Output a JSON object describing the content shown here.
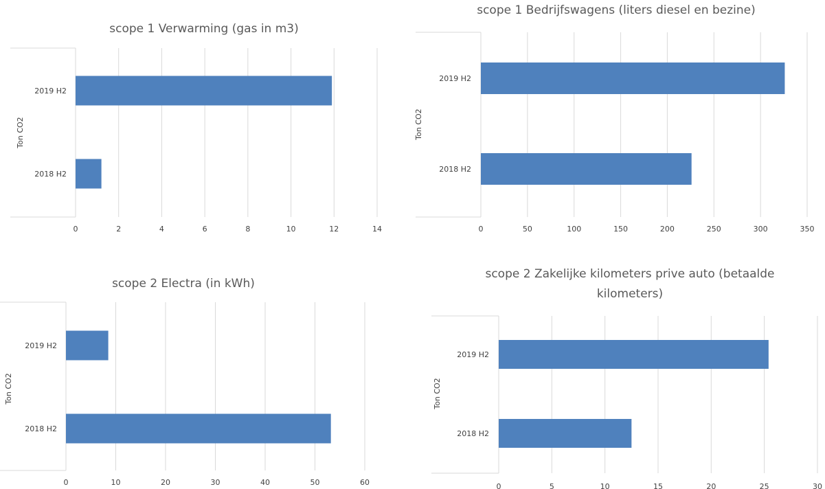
{
  "chart_data": [
    {
      "type": "bar",
      "orientation": "horizontal",
      "title": "scope 1 Verwarming (gas in m3)",
      "ylabel": "Ton CO2",
      "xlabel": "",
      "categories": [
        "2019 H2",
        "2018 H2"
      ],
      "values": [
        11.9,
        1.2
      ],
      "xlim": [
        0,
        14
      ],
      "ticks": [
        "0",
        "2",
        "4",
        "6",
        "8",
        "10",
        "12",
        "14"
      ],
      "bar_color": "#4f81bd",
      "grid": true
    },
    {
      "type": "bar",
      "orientation": "horizontal",
      "title": "scope 1 Bedrijfswagens (liters diesel en bezine)",
      "ylabel": "Ton CO2",
      "xlabel": "",
      "categories": [
        "2019 H2",
        "2018 H2"
      ],
      "values": [
        326,
        226
      ],
      "xlim": [
        0,
        350
      ],
      "ticks": [
        "0",
        "50",
        "100",
        "150",
        "200",
        "250",
        "300",
        "350"
      ],
      "bar_color": "#4f81bd",
      "grid": true
    },
    {
      "type": "bar",
      "orientation": "horizontal",
      "title": "scope 2 Electra (in kWh)",
      "ylabel": "Ton CO2",
      "xlabel": "",
      "categories": [
        "2019 H2",
        "2018 H2"
      ],
      "values": [
        8.5,
        53.2
      ],
      "xlim": [
        0,
        60
      ],
      "ticks": [
        "0",
        "10",
        "20",
        "30",
        "40",
        "50",
        "60"
      ],
      "bar_color": "#4f81bd",
      "grid": true
    },
    {
      "type": "bar",
      "orientation": "horizontal",
      "title": "scope 2 Zakelijke kilometers prive auto (betaalde kilometers)",
      "title_lines": [
        "scope 2 Zakelijke kilometers prive auto (betaalde",
        "kilometers)"
      ],
      "ylabel": "Ton CO2",
      "xlabel": "",
      "categories": [
        "2019 H2",
        "2018 H2"
      ],
      "values": [
        25.4,
        12.5
      ],
      "xlim": [
        0,
        30
      ],
      "ticks": [
        "0",
        "5",
        "10",
        "15",
        "20",
        "25",
        "30"
      ],
      "bar_color": "#4f81bd",
      "grid": true
    }
  ]
}
